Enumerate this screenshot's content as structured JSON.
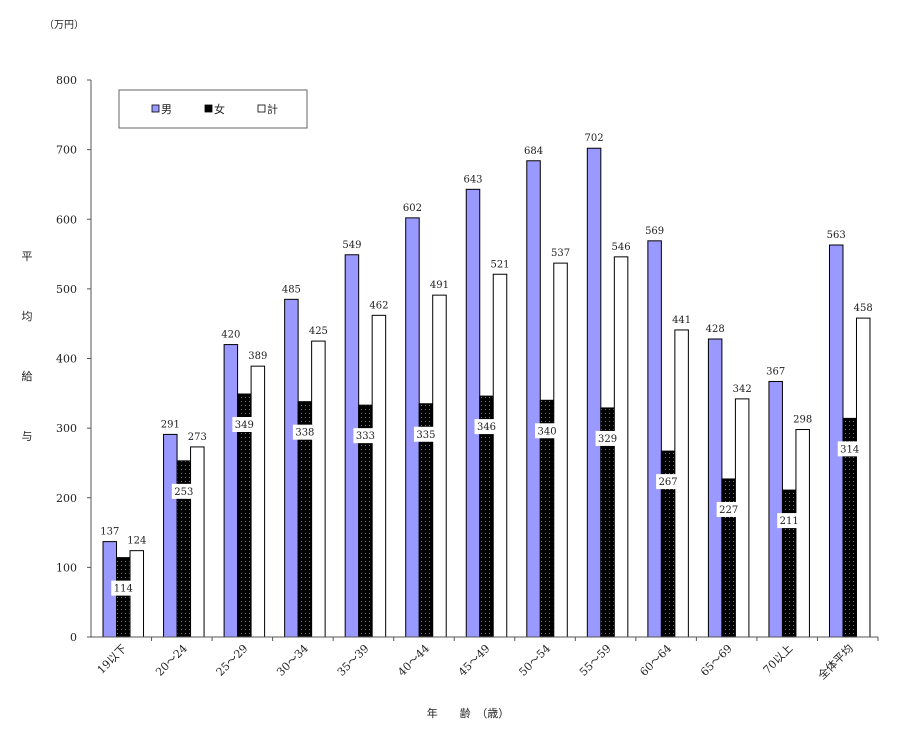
{
  "colors": {
    "male": "#9999ff",
    "female": "#000000",
    "total": "#ffffff"
  },
  "chart_data": {
    "type": "bar",
    "unit_label": "（万円）",
    "ylabel_chars": [
      "平",
      "均",
      "給",
      "与"
    ],
    "xlabel": "年　　齢　（歳）",
    "ylim": [
      0,
      800
    ],
    "yticks": [
      0,
      100,
      200,
      300,
      400,
      500,
      600,
      700,
      800
    ],
    "grid": false,
    "legend_position": "top-left",
    "categories": [
      "19以下",
      "20～24",
      "25～29",
      "30～34",
      "35～39",
      "40～44",
      "45～49",
      "50～54",
      "55～59",
      "60～64",
      "65～69",
      "70以上",
      "全体平均"
    ],
    "series": [
      {
        "name": "男",
        "values": [
          137,
          291,
          420,
          485,
          549,
          602,
          643,
          684,
          702,
          569,
          428,
          367,
          563
        ]
      },
      {
        "name": "女",
        "values": [
          114,
          253,
          349,
          338,
          333,
          335,
          346,
          340,
          329,
          267,
          227,
          211,
          314
        ]
      },
      {
        "name": "計",
        "values": [
          124,
          273,
          389,
          425,
          462,
          491,
          521,
          537,
          546,
          441,
          342,
          298,
          458
        ]
      }
    ]
  }
}
